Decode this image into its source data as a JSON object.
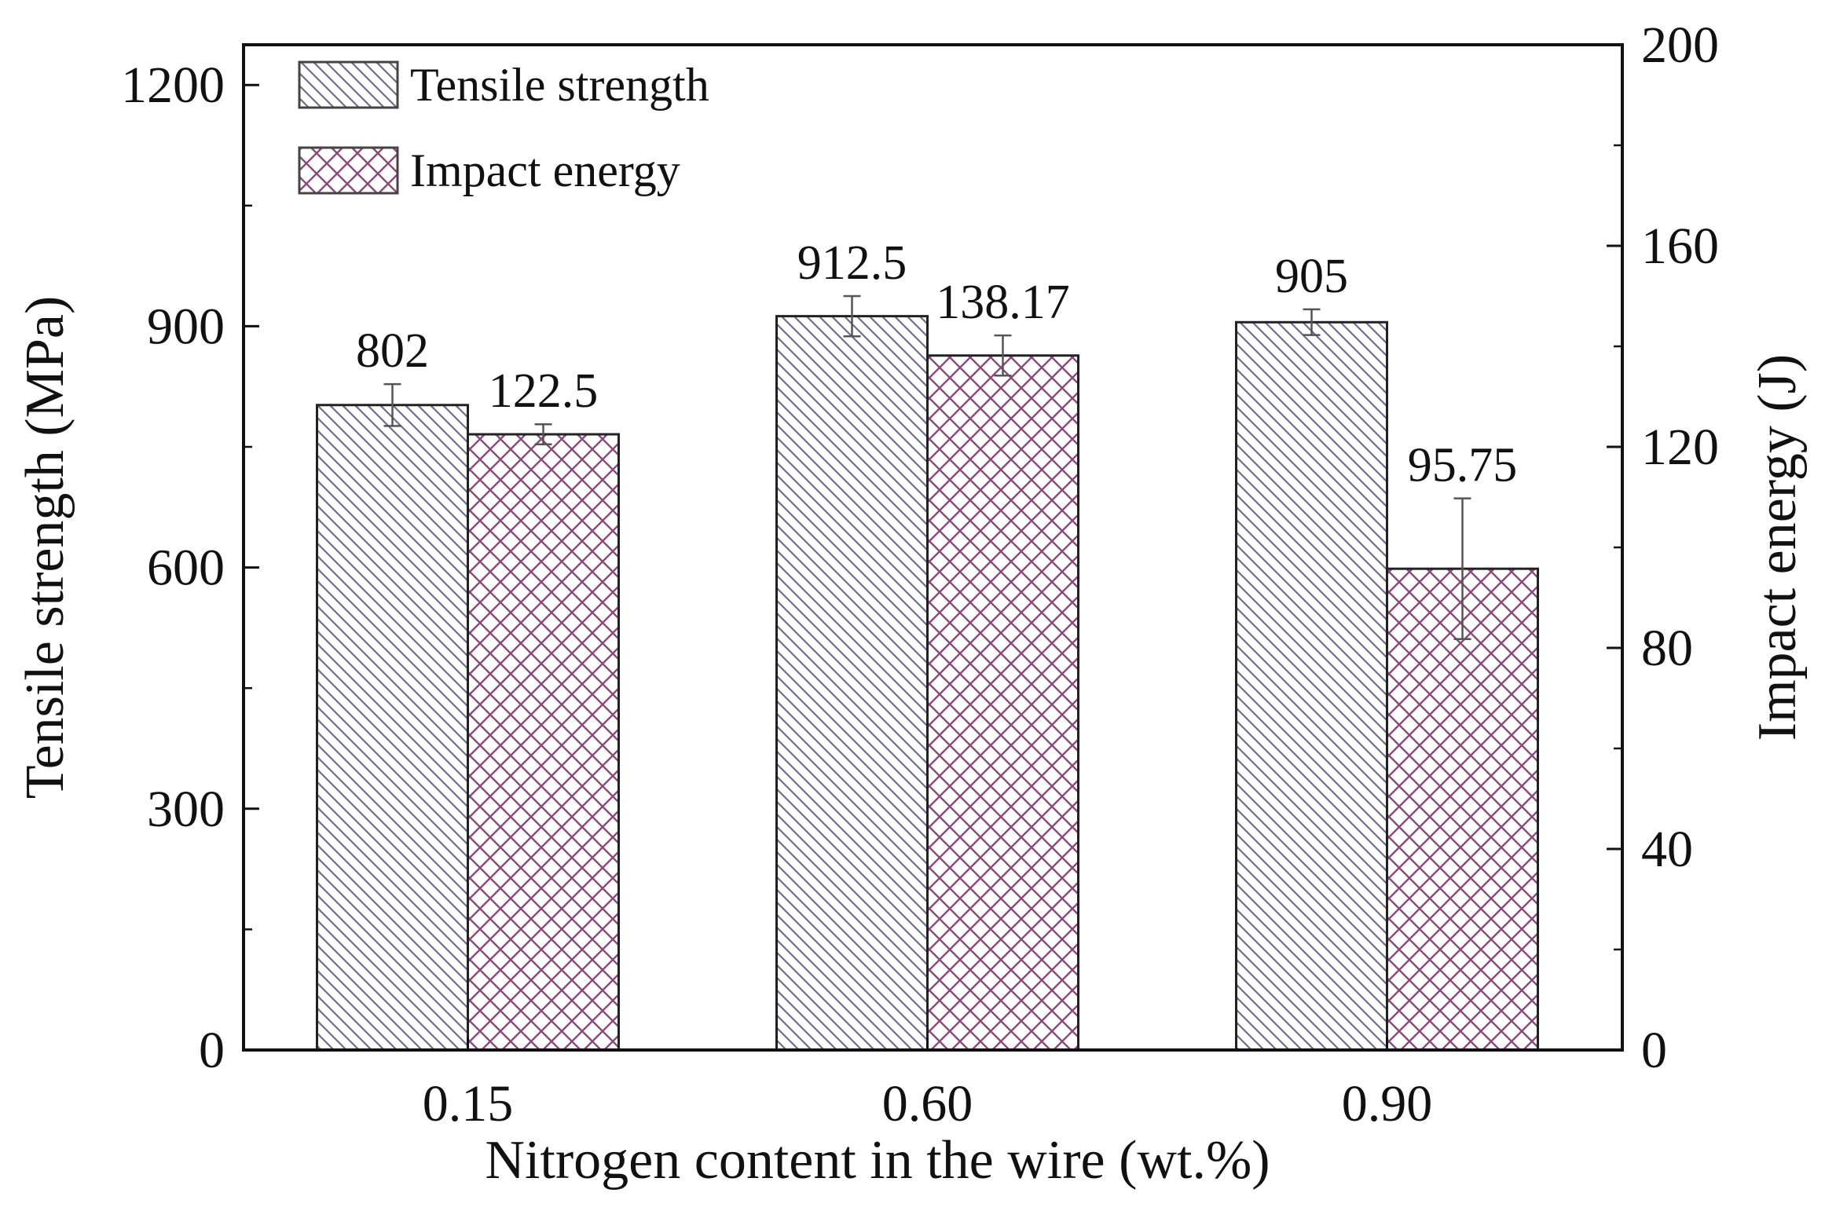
{
  "chart_data": {
    "type": "bar",
    "xlabel": "Nitrogen content in the wire (wt.%)",
    "ylabel": "Tensile strength (MPa)",
    "y2label": "Impact energy (J)",
    "categories": [
      "0.15",
      "0.60",
      "0.90"
    ],
    "ylim": [
      0,
      1250
    ],
    "y2lim": [
      0,
      200
    ],
    "yticks": [
      0,
      300,
      600,
      900,
      1200
    ],
    "y2ticks": [
      0,
      40,
      80,
      120,
      160,
      200
    ],
    "series": [
      {
        "name": "Tensile strength",
        "axis": "left",
        "values": [
          802,
          912.5,
          905
        ],
        "labels": [
          "802",
          "912.5",
          "905"
        ],
        "errors": [
          26,
          25,
          16
        ],
        "color": "#6e6e8a",
        "pattern": "diagonal"
      },
      {
        "name": "Impact energy",
        "axis": "right",
        "values": [
          122.5,
          138.17,
          95.75
        ],
        "labels": [
          "122.5",
          "138.17",
          "95.75"
        ],
        "errors": [
          2,
          4,
          14
        ],
        "color": "#8a4a7a",
        "pattern": "crosshatch"
      }
    ],
    "legend": {
      "position": "top-left"
    },
    "grid": false
  }
}
